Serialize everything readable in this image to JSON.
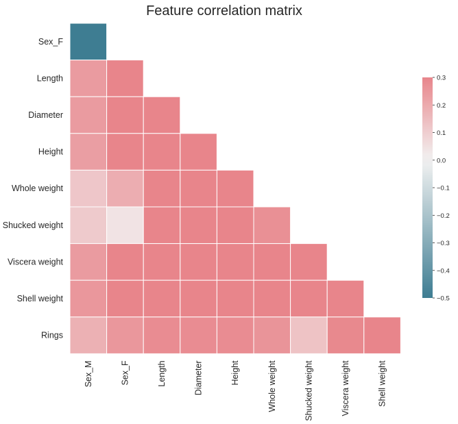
{
  "chart_data": {
    "type": "heatmap",
    "title": "Feature correlation matrix",
    "mask": "upper-triangle-including-diagonal (diagonal shown for first row only as in image)",
    "rows": [
      "Sex_F",
      "Length",
      "Diameter",
      "Height",
      "Whole weight",
      "Shucked weight",
      "Viscera weight",
      "Shell weight",
      "Rings"
    ],
    "columns": [
      "Sex_M",
      "Sex_F",
      "Length",
      "Diameter",
      "Height",
      "Whole weight",
      "Shucked weight",
      "Viscera weight",
      "Shell weight"
    ],
    "values": [
      [
        -0.51
      ],
      [
        0.24,
        0.3
      ],
      [
        0.24,
        0.3,
        0.3
      ],
      [
        0.23,
        0.3,
        0.3,
        0.3
      ],
      [
        0.12,
        0.19,
        0.3,
        0.3,
        0.3
      ],
      [
        0.11,
        0.04,
        0.3,
        0.3,
        0.3,
        0.27
      ],
      [
        0.24,
        0.3,
        0.3,
        0.3,
        0.3,
        0.3,
        0.3
      ],
      [
        0.25,
        0.3,
        0.3,
        0.3,
        0.3,
        0.3,
        0.3,
        0.3
      ],
      [
        0.18,
        0.25,
        0.28,
        0.28,
        0.28,
        0.26,
        0.13,
        0.29,
        0.3
      ]
    ],
    "colorbar": {
      "min": -0.5,
      "max": 0.3,
      "ticks": [
        "0.3",
        "0.2",
        "0.1",
        "0.0",
        "−0.1",
        "−0.2",
        "−0.3",
        "−0.4",
        "−0.5"
      ],
      "low_color": "#3e7d92",
      "mid_color": "#f2f2f2",
      "high_color": "#e8858b"
    }
  }
}
